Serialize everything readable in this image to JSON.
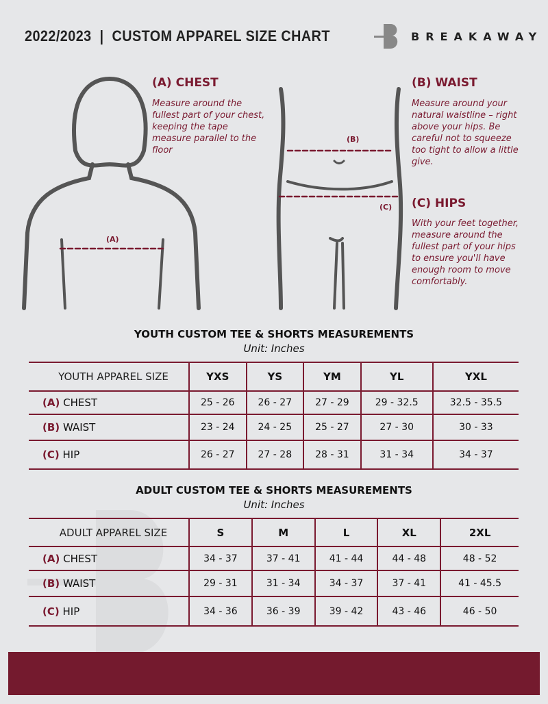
{
  "header": {
    "title": "2022/2023  |  CUSTOM APPAREL SIZE CHART",
    "brand": "BREAKAWAY",
    "logo_letter": "B"
  },
  "guide": {
    "chest": {
      "heading": "(A) CHEST",
      "text": "Measure around the fullest part of your chest, keeping the tape measure parallel to the floor",
      "marker": "(A)"
    },
    "waist": {
      "heading": "(B) WAIST",
      "text": "Measure around your natural waistline – right above your hips. Be careful not to squeeze too tight to allow a little give.",
      "marker": "(B)"
    },
    "hips": {
      "heading": "(C) HIPS",
      "text": "With your feet together, measure around the fullest part of your hips to ensure you'll have enough room to move comfortably.",
      "marker": "(C)"
    }
  },
  "youth": {
    "title": "YOUTH CUSTOM TEE & SHORTS MEASUREMENTS",
    "unit": "Unit: Inches",
    "header_label": "YOUTH APPAREL SIZE",
    "sizes": [
      "YXS",
      "YS",
      "YM",
      "YL",
      "YXL"
    ],
    "rows": [
      {
        "code": "(A)",
        "name": "CHEST",
        "values": [
          "25 - 26",
          "26 - 27",
          "27 - 29",
          "29 - 32.5",
          "32.5 - 35.5"
        ]
      },
      {
        "code": "(B)",
        "name": "WAIST",
        "values": [
          "23 - 24",
          "24 - 25",
          "25 - 27",
          "27 - 30",
          "30 - 33"
        ]
      },
      {
        "code": "(C)",
        "name": "HIP",
        "values": [
          "26 - 27",
          "27 - 28",
          "28 - 31",
          "31 - 34",
          "34 - 37"
        ]
      }
    ]
  },
  "adult": {
    "title": "ADULT CUSTOM TEE & SHORTS MEASUREMENTS",
    "unit": "Unit: Inches",
    "header_label": "ADULT APPAREL SIZE",
    "sizes": [
      "S",
      "M",
      "L",
      "XL",
      "2XL"
    ],
    "rows": [
      {
        "code": "(A)",
        "name": "CHEST",
        "values": [
          "34 - 37",
          "37 - 41",
          "41 - 44",
          "44 - 48",
          "48 - 52"
        ]
      },
      {
        "code": "(B)",
        "name": "WAIST",
        "values": [
          "29 - 31",
          "31 - 34",
          "34 - 37",
          "37 - 41",
          "41 - 45.5"
        ]
      },
      {
        "code": "(C)",
        "name": "HIP",
        "values": [
          "34 - 36",
          "36 - 39",
          "39 - 42",
          "43 - 46",
          "46 - 50"
        ]
      }
    ]
  },
  "colors": {
    "accent": "#7a1a30",
    "background": "#e6e7e9",
    "footer": "#741a2e"
  }
}
